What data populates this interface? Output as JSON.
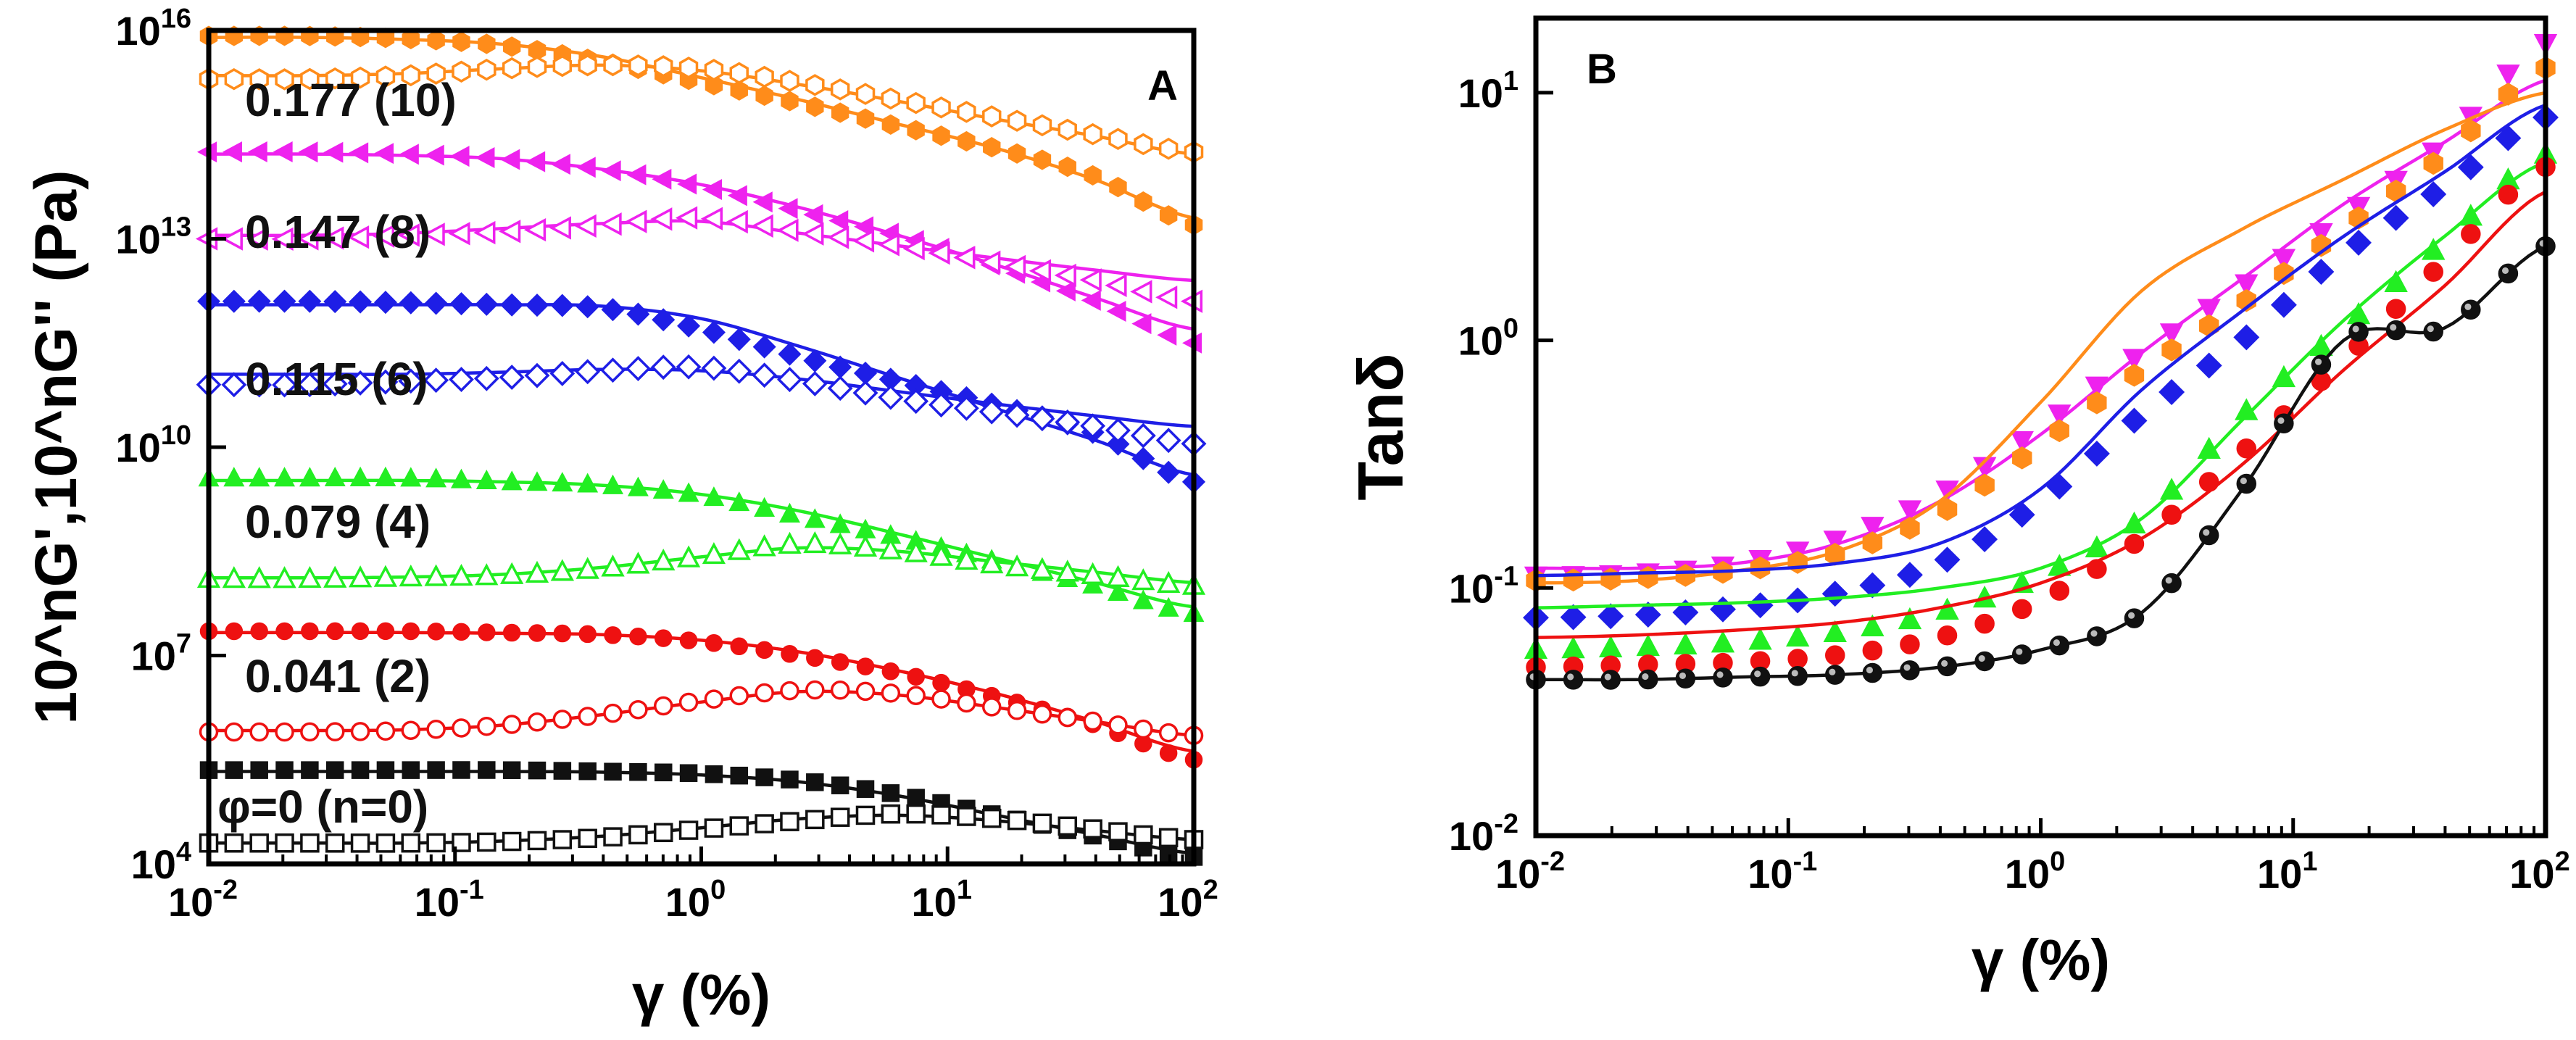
{
  "chart_data": [
    {
      "panel": "A",
      "type": "scatter",
      "xlabel": "γ (%)",
      "ylabel": "10^nG',10^nG'' (Pa)",
      "xscale": "log",
      "yscale": "log",
      "xlim": [
        0.01,
        100
      ],
      "ylim": [
        10000,
        1e+16
      ],
      "xticks": [
        0.01,
        0.1,
        1,
        10,
        100
      ],
      "yticks": [
        10000,
        10000000.0,
        10000000000.0,
        10000000000000.0,
        1e+16
      ],
      "annotations": [
        "0.177 (10)",
        "0.147 (8)",
        "0.115 (6)",
        "0.079 (4)",
        "0.041 (2)",
        "φ=0 (n=0)"
      ],
      "legend": "none",
      "series": [
        {
          "color": "#FF8C1A",
          "marker": "hexagon",
          "fill": "filled",
          "kind": "G'",
          "ys": [
            15.92,
            15.92,
            15.88,
            15.78,
            15.55,
            15.25,
            14.95,
            14.62,
            14.3,
            13.9,
            13.2
          ],
          "fit": [
            15.9,
            15.9,
            15.87,
            15.8,
            15.62,
            15.32,
            15.0,
            14.65,
            14.3,
            13.85,
            13.3
          ]
        },
        {
          "color": "#FF8C1A",
          "marker": "hexagon",
          "fill": "open",
          "kind": "G''",
          "ys": [
            15.3,
            15.3,
            15.35,
            15.45,
            15.5,
            15.45,
            15.25,
            15.0,
            14.75,
            14.5,
            14.25
          ],
          "fit": [
            15.35,
            15.35,
            15.38,
            15.45,
            15.5,
            15.42,
            15.22,
            14.98,
            14.72,
            14.48,
            14.22
          ]
        },
        {
          "color": "#EE22EE",
          "marker": "triangle-left",
          "fill": "filled",
          "kind": "G'",
          "ys": [
            14.25,
            14.25,
            14.22,
            14.15,
            14.0,
            13.75,
            13.4,
            13.05,
            12.6,
            12.1,
            11.5
          ],
          "fit": [
            14.22,
            14.22,
            14.2,
            14.15,
            14.0,
            13.78,
            13.45,
            13.05,
            12.62,
            12.15,
            11.7
          ]
        },
        {
          "color": "#EE22EE",
          "marker": "triangle-left",
          "fill": "open",
          "kind": "G''",
          "ys": [
            13.0,
            13.0,
            13.05,
            13.1,
            13.2,
            13.3,
            13.1,
            12.9,
            12.65,
            12.4,
            12.1
          ],
          "fit": [
            13.05,
            13.05,
            13.08,
            13.15,
            13.22,
            13.25,
            13.08,
            12.9,
            12.72,
            12.55,
            12.4
          ]
        },
        {
          "color": "#1E1EE6",
          "marker": "diamond",
          "fill": "filled",
          "kind": "G'",
          "ys": [
            12.1,
            12.1,
            12.08,
            12.05,
            12.0,
            11.7,
            11.3,
            10.95,
            10.6,
            10.2,
            9.5
          ],
          "fit": [
            12.05,
            12.05,
            12.05,
            12.05,
            12.03,
            11.85,
            11.45,
            11.0,
            10.55,
            10.1,
            9.6
          ]
        },
        {
          "color": "#1E1EE6",
          "marker": "diamond",
          "fill": "open",
          "kind": "G''",
          "ys": [
            10.9,
            10.9,
            10.95,
            11.0,
            11.1,
            11.15,
            10.95,
            10.7,
            10.5,
            10.3,
            10.05
          ],
          "fit": [
            11.05,
            11.05,
            11.05,
            11.08,
            11.12,
            11.1,
            10.98,
            10.8,
            10.62,
            10.45,
            10.3
          ]
        },
        {
          "color": "#22EE22",
          "marker": "triangle-up",
          "fill": "filled",
          "kind": "G'",
          "ys": [
            9.55,
            9.55,
            9.55,
            9.5,
            9.45,
            9.3,
            9.0,
            8.7,
            8.35,
            8.0,
            7.6
          ],
          "fit": [
            9.52,
            9.52,
            9.52,
            9.5,
            9.45,
            9.32,
            9.08,
            8.75,
            8.4,
            8.05,
            7.7
          ]
        },
        {
          "color": "#22EE22",
          "marker": "triangle-up",
          "fill": "open",
          "kind": "G''",
          "ys": [
            8.1,
            8.1,
            8.12,
            8.15,
            8.25,
            8.42,
            8.6,
            8.5,
            8.3,
            8.15,
            8.0
          ],
          "fit": [
            8.12,
            8.12,
            8.13,
            8.17,
            8.27,
            8.42,
            8.55,
            8.5,
            8.35,
            8.2,
            8.05
          ]
        },
        {
          "color": "#EE1111",
          "marker": "circle",
          "fill": "filled",
          "kind": "G'",
          "ys": [
            7.35,
            7.35,
            7.35,
            7.33,
            7.3,
            7.2,
            7.0,
            6.75,
            6.4,
            6.0,
            5.5
          ],
          "fit": [
            7.33,
            7.33,
            7.33,
            7.32,
            7.3,
            7.22,
            7.05,
            6.78,
            6.45,
            6.05,
            5.62
          ]
        },
        {
          "color": "#EE1111",
          "marker": "circle",
          "fill": "open",
          "kind": "G''",
          "ys": [
            5.9,
            5.9,
            5.92,
            6.0,
            6.15,
            6.35,
            6.5,
            6.45,
            6.25,
            6.05,
            5.85
          ],
          "fit": [
            5.92,
            5.92,
            5.93,
            6.0,
            6.15,
            6.33,
            6.48,
            6.43,
            6.25,
            6.05,
            5.85
          ]
        },
        {
          "color": "#111111",
          "marker": "square",
          "fill": "filled",
          "kind": "G'",
          "ys": [
            5.35,
            5.35,
            5.35,
            5.35,
            5.33,
            5.3,
            5.2,
            5.0,
            4.7,
            4.4,
            4.1
          ],
          "fit": [
            5.33,
            5.33,
            5.33,
            5.33,
            5.32,
            5.28,
            5.18,
            4.98,
            4.7,
            4.42,
            4.15
          ]
        },
        {
          "color": "#111111",
          "marker": "square",
          "fill": "open",
          "kind": "G''",
          "ys": [
            4.3,
            4.3,
            4.3,
            4.32,
            4.38,
            4.5,
            4.62,
            4.72,
            4.65,
            4.5,
            4.35
          ],
          "fit": [
            4.3,
            4.3,
            4.3,
            4.33,
            4.4,
            4.52,
            4.65,
            4.7,
            4.62,
            4.48,
            4.35
          ]
        }
      ]
    },
    {
      "panel": "B",
      "type": "scatter",
      "xlabel": "γ (%)",
      "ylabel": "Tanδ",
      "xscale": "log",
      "yscale": "log",
      "xlim": [
        0.01,
        100
      ],
      "ylim": [
        0.01,
        20
      ],
      "xticks": [
        0.01,
        0.1,
        1,
        10,
        100
      ],
      "yticks": [
        0.01,
        0.1,
        1,
        10
      ],
      "legend": "none",
      "series": [
        {
          "color": "#EE22EE",
          "marker": "triangle-down",
          "ys": [
            -0.95,
            -0.94,
            -0.9,
            -0.8,
            -0.62,
            -0.35,
            -0.05,
            0.22,
            0.5,
            0.8,
            1.2
          ],
          "fit": [
            -0.92,
            -0.92,
            -0.9,
            -0.82,
            -0.65,
            -0.38,
            -0.05,
            0.25,
            0.55,
            0.8,
            1.05
          ]
        },
        {
          "color": "#FF8C1A",
          "marker": "hexagon",
          "ys": [
            -0.97,
            -0.96,
            -0.93,
            -0.86,
            -0.7,
            -0.42,
            -0.12,
            0.15,
            0.45,
            0.75,
            1.1
          ],
          "fit": [
            -0.98,
            -0.97,
            -0.93,
            -0.85,
            -0.65,
            -0.25,
            0.2,
            0.45,
            0.65,
            0.85,
            1.0
          ]
        },
        {
          "color": "#1E1EE6",
          "marker": "diamond",
          "ys": [
            -1.12,
            -1.11,
            -1.08,
            -1.02,
            -0.9,
            -0.65,
            -0.3,
            0.0,
            0.35,
            0.62,
            0.9
          ],
          "fit": [
            -0.95,
            -0.94,
            -0.93,
            -0.9,
            -0.82,
            -0.6,
            -0.2,
            0.12,
            0.42,
            0.68,
            0.95
          ]
        },
        {
          "color": "#22EE22",
          "marker": "triangle-up",
          "ys": [
            -1.25,
            -1.24,
            -1.22,
            -1.18,
            -1.1,
            -0.95,
            -0.72,
            -0.3,
            0.05,
            0.4,
            0.75
          ],
          "fit": [
            -1.08,
            -1.07,
            -1.06,
            -1.04,
            -1.0,
            -0.92,
            -0.72,
            -0.32,
            0.08,
            0.42,
            0.72
          ]
        },
        {
          "color": "#EE1111",
          "marker": "circle",
          "ys": [
            -1.32,
            -1.31,
            -1.3,
            -1.27,
            -1.2,
            -1.05,
            -0.8,
            -0.45,
            -0.08,
            0.32,
            0.7
          ],
          "fit": [
            -1.2,
            -1.19,
            -1.17,
            -1.14,
            -1.08,
            -0.98,
            -0.8,
            -0.5,
            -0.12,
            0.22,
            0.6
          ]
        },
        {
          "color": "#111111",
          "marker": "ball",
          "ys": [
            -1.37,
            -1.37,
            -1.36,
            -1.35,
            -1.32,
            -1.25,
            -1.1,
            -0.6,
            0.0,
            0.05,
            0.38
          ],
          "fit": [
            -1.37,
            -1.37,
            -1.36,
            -1.35,
            -1.32,
            -1.25,
            -1.1,
            -0.6,
            0.0,
            0.05,
            0.38
          ]
        }
      ]
    }
  ],
  "panel_labels": {
    "a": "A",
    "b": "B"
  }
}
